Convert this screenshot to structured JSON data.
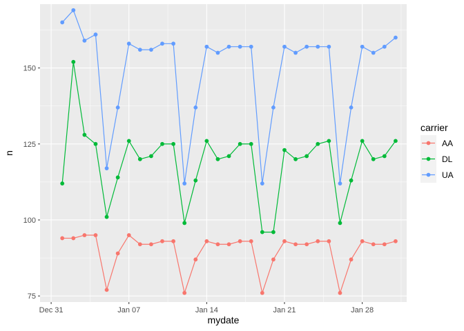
{
  "chart_data": {
    "type": "line",
    "xlabel": "mydate",
    "ylabel": "n",
    "x_axis_type": "date",
    "xlim": [
      "2016-12-30",
      "2017-02-01"
    ],
    "ylim": [
      73,
      171
    ],
    "x_ticks": [
      {
        "date": "2016-12-31",
        "label": "Dec 31"
      },
      {
        "date": "2017-01-07",
        "label": "Jan 07"
      },
      {
        "date": "2017-01-14",
        "label": "Jan 14"
      },
      {
        "date": "2017-01-21",
        "label": "Jan 21"
      },
      {
        "date": "2017-01-28",
        "label": "Jan 28"
      }
    ],
    "y_ticks": [
      {
        "value": 75,
        "label": "75"
      },
      {
        "value": 100,
        "label": "100"
      },
      {
        "value": 125,
        "label": "125"
      },
      {
        "value": 150,
        "label": "150"
      }
    ],
    "grid": true,
    "legend": {
      "title": "carrier",
      "position": "right"
    },
    "x": [
      "2017-01-01",
      "2017-01-02",
      "2017-01-03",
      "2017-01-04",
      "2017-01-05",
      "2017-01-06",
      "2017-01-07",
      "2017-01-08",
      "2017-01-09",
      "2017-01-10",
      "2017-01-11",
      "2017-01-12",
      "2017-01-13",
      "2017-01-14",
      "2017-01-15",
      "2017-01-16",
      "2017-01-17",
      "2017-01-18",
      "2017-01-19",
      "2017-01-20",
      "2017-01-21",
      "2017-01-22",
      "2017-01-23",
      "2017-01-24",
      "2017-01-25",
      "2017-01-26",
      "2017-01-27",
      "2017-01-28",
      "2017-01-29",
      "2017-01-30",
      "2017-01-31"
    ],
    "series": [
      {
        "name": "AA",
        "color": "#F8766D",
        "values": [
          94,
          94,
          95,
          95,
          77,
          89,
          95,
          92,
          92,
          93,
          93,
          76,
          87,
          93,
          92,
          92,
          93,
          93,
          76,
          87,
          93,
          92,
          92,
          93,
          93,
          76,
          87,
          93,
          92,
          92,
          93
        ]
      },
      {
        "name": "DL",
        "color": "#00BA38",
        "values": [
          112,
          152,
          128,
          125,
          101,
          114,
          126,
          120,
          121,
          125,
          125,
          99,
          113,
          126,
          120,
          121,
          125,
          125,
          96,
          96,
          123,
          120,
          121,
          125,
          126,
          99,
          113,
          126,
          120,
          121,
          126
        ]
      },
      {
        "name": "UA",
        "color": "#619CFF",
        "values": [
          165,
          169,
          159,
          161,
          117,
          137,
          158,
          156,
          156,
          158,
          158,
          112,
          137,
          157,
          155,
          157,
          157,
          157,
          112,
          137,
          157,
          155,
          157,
          157,
          157,
          112,
          137,
          157,
          155,
          157,
          160
        ]
      }
    ]
  }
}
